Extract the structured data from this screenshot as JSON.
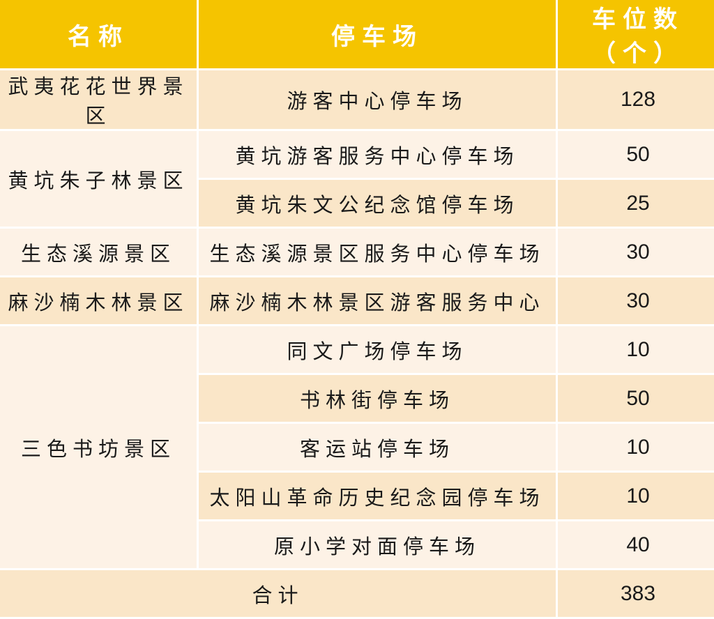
{
  "header": {
    "name": "名称",
    "parking": "停车场",
    "spaces": "车位数（个）"
  },
  "rows": [
    {
      "area": "武夷花花世界景区",
      "lots": [
        {
          "name": "游客中心停车场",
          "count": "128"
        }
      ]
    },
    {
      "area": "黄坑朱子林景区",
      "lots": [
        {
          "name": "黄坑游客服务中心停车场",
          "count": "50"
        },
        {
          "name": "黄坑朱文公纪念馆停车场",
          "count": "25"
        }
      ]
    },
    {
      "area": "生态溪源景区",
      "lots": [
        {
          "name": "生态溪源景区服务中心停车场",
          "count": "30"
        }
      ]
    },
    {
      "area": "麻沙楠木林景区",
      "lots": [
        {
          "name": "麻沙楠木林景区游客服务中心",
          "count": "30"
        }
      ]
    },
    {
      "area": "三色书坊景区",
      "lots": [
        {
          "name": "同文广场停车场",
          "count": "10"
        },
        {
          "name": "书林街停车场",
          "count": "50"
        },
        {
          "name": "客运站停车场",
          "count": "10"
        },
        {
          "name": "太阳山革命历史纪念园停车场",
          "count": "10"
        },
        {
          "name": "原小学对面停车场",
          "count": "40"
        }
      ]
    }
  ],
  "total": {
    "label": "合计",
    "count": "383"
  },
  "colors": {
    "header": "#F5C400",
    "row_dark": "#FAE6C8",
    "row_light": "#FDF2E6"
  }
}
